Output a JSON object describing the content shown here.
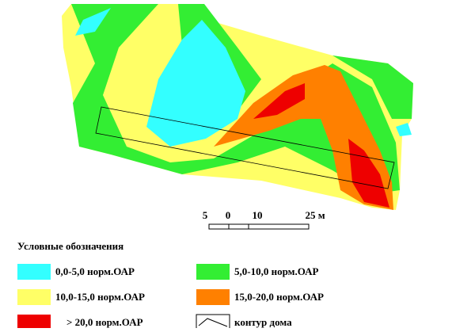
{
  "map": {
    "scale_bar": {
      "labels": [
        "5",
        "0",
        "10",
        "25 м"
      ]
    },
    "legend": {
      "title": "Условные обозначения",
      "items": [
        {
          "label": "0,0-5,0 норм.ОАР",
          "color": "#33ffff"
        },
        {
          "label": "5,0-10,0 норм.ОАР",
          "color": "#33ee33"
        },
        {
          "label": "10,0-15,0 норм.ОАР",
          "color": "#ffff66"
        },
        {
          "label": "15,0-20,0 норм.ОАР",
          "color": "#ff8000"
        },
        {
          "label": "> 20,0 норм.ОАР",
          "color": "#ee0000"
        },
        {
          "label": "контур дома",
          "color": "#ffffff"
        }
      ]
    }
  }
}
